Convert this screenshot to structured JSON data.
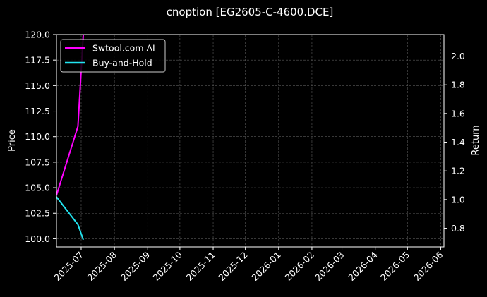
{
  "chart_data": {
    "type": "line",
    "title": "cnoption [EG2605-C-4600.DCE]",
    "xlabel": "",
    "ylabel": "Price",
    "y2label": "Return",
    "x_range": [
      "2025-06-08",
      "2026-06-04"
    ],
    "x_ticks": [
      "2025-07",
      "2025-08",
      "2025-09",
      "2025-10",
      "2025-11",
      "2025-12",
      "2026-01",
      "2026-02",
      "2026-03",
      "2026-04",
      "2026-05",
      "2026-06"
    ],
    "ylim": [
      99.2,
      120.0
    ],
    "y_ticks": [
      "100.0",
      "102.5",
      "105.0",
      "107.5",
      "110.0",
      "112.5",
      "115.0",
      "117.5",
      "120.0"
    ],
    "y2lim": [
      0.67,
      2.15
    ],
    "y2_ticks": [
      "0.8",
      "1.0",
      "1.2",
      "1.4",
      "1.6",
      "1.8",
      "2.0"
    ],
    "grid": true,
    "legend_position": "top-left",
    "series": [
      {
        "name": "Swtool.com AI",
        "axis": "right",
        "color": "#ff00ff",
        "x": [
          "2025-06-08",
          "2025-06-28",
          "2025-07-03"
        ],
        "values": [
          1.03,
          1.51,
          2.15
        ]
      },
      {
        "name": "Buy-and-Hold",
        "axis": "left",
        "color": "#22e4f0",
        "x": [
          "2025-06-08",
          "2025-06-28",
          "2025-07-03"
        ],
        "values": [
          104.1,
          101.4,
          99.9
        ]
      }
    ]
  }
}
